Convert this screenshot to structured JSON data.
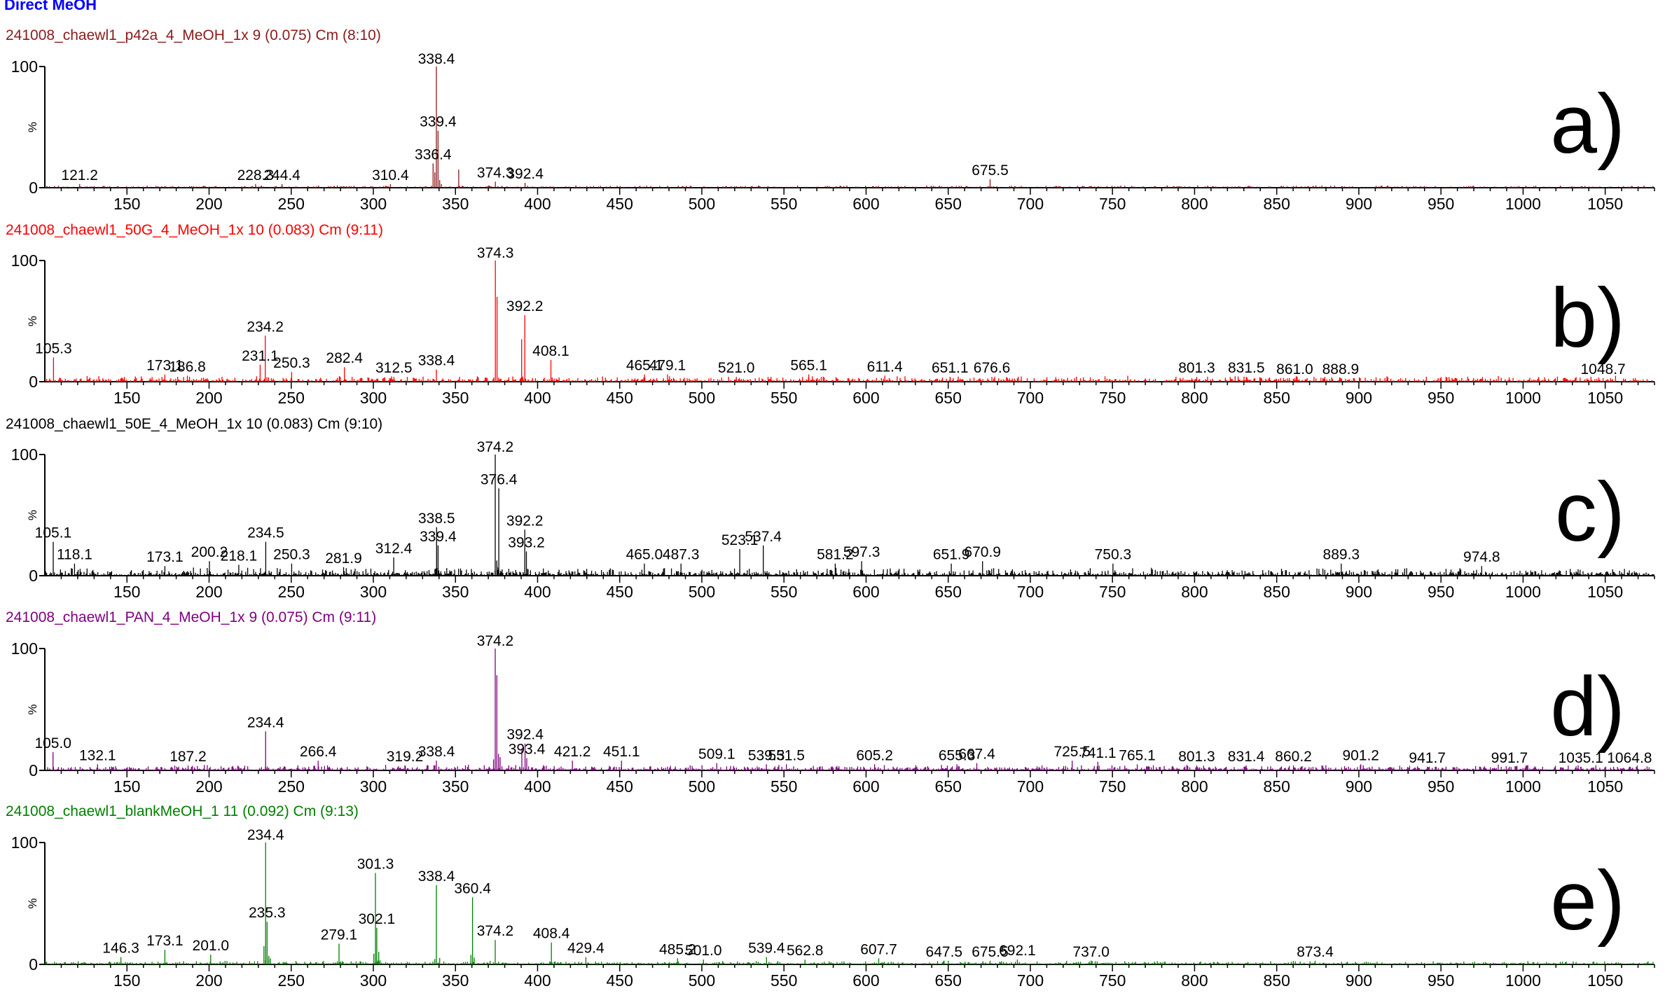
{
  "page": {
    "title": "Direct MeOH"
  },
  "colors": {
    "a": "#8b1a1a",
    "b": "#ff0000",
    "c": "#000000",
    "d": "#800080",
    "e": "#008000"
  },
  "chart_data": [
    {
      "type": "line",
      "panel": "a)",
      "header": "241008_chaewl1_p42a_4_MeOH_1x 9 (0.075) Cm (8:10)",
      "ylabel": "%",
      "ytick_labels": [
        "100",
        "0"
      ],
      "ylim": [
        0,
        100
      ],
      "xlim": [
        100,
        1080
      ],
      "xticks": [
        150,
        200,
        250,
        300,
        350,
        400,
        450,
        500,
        550,
        600,
        650,
        700,
        750,
        800,
        850,
        900,
        950,
        1000,
        1050
      ],
      "noise": 2,
      "peaks": [
        [
          121.2,
          3
        ],
        [
          228.3,
          3
        ],
        [
          244.4,
          3
        ],
        [
          310.4,
          3
        ],
        [
          336.4,
          20
        ],
        [
          338.4,
          100
        ],
        [
          339.4,
          47
        ],
        [
          352,
          15
        ],
        [
          374.3,
          5
        ],
        [
          392.4,
          4
        ],
        [
          675.5,
          7
        ]
      ],
      "labels": [
        {
          "text": "121.2",
          "x": 121.2
        },
        {
          "text": "228.3",
          "x": 228.3
        },
        {
          "text": "244.4",
          "x": 244.4
        },
        {
          "text": "310.4",
          "x": 310.4
        },
        {
          "text": "336.4",
          "x": 336.4
        },
        {
          "text": "338.4",
          "x": 338.4
        },
        {
          "text": "339.4",
          "x": 339.4
        },
        {
          "text": "374.3",
          "x": 374.3
        },
        {
          "text": "392.4",
          "x": 392.4
        },
        {
          "text": "675.5",
          "x": 675.5
        }
      ]
    },
    {
      "type": "line",
      "panel": "b)",
      "header": "241008_chaewl1_50G_4_MeOH_1x 10 (0.083) Cm (9:11)",
      "ylabel": "%",
      "ytick_labels": [
        "100",
        "0"
      ],
      "ylim": [
        0,
        100
      ],
      "xlim": [
        100,
        1080
      ],
      "xticks": [
        150,
        200,
        250,
        300,
        350,
        400,
        450,
        500,
        550,
        600,
        650,
        700,
        750,
        800,
        850,
        900,
        950,
        1000,
        1050
      ],
      "noise": 5,
      "peaks": [
        [
          105.3,
          20
        ],
        [
          173.1,
          6
        ],
        [
          186.8,
          5
        ],
        [
          231.1,
          14
        ],
        [
          234.2,
          38
        ],
        [
          250.3,
          8
        ],
        [
          282.4,
          12
        ],
        [
          312.5,
          4
        ],
        [
          338.4,
          10
        ],
        [
          374.3,
          100
        ],
        [
          375.3,
          70
        ],
        [
          392.2,
          55
        ],
        [
          390.3,
          35
        ],
        [
          408.1,
          18
        ],
        [
          465.1,
          6
        ],
        [
          479.1,
          6
        ],
        [
          521.0,
          4
        ],
        [
          565.1,
          6
        ],
        [
          611.4,
          5
        ],
        [
          651.1,
          4
        ],
        [
          676.6,
          4
        ],
        [
          801.3,
          4
        ],
        [
          831.5,
          4
        ],
        [
          861.0,
          3
        ],
        [
          888.9,
          3
        ],
        [
          1048.7,
          3
        ]
      ],
      "labels": [
        {
          "text": "105.3",
          "x": 105.3
        },
        {
          "text": "173.1",
          "x": 173.1
        },
        {
          "text": "186.8",
          "x": 186.8
        },
        {
          "text": "231.1",
          "x": 231.1
        },
        {
          "text": "234.2",
          "x": 234.2
        },
        {
          "text": "250.3",
          "x": 250.3
        },
        {
          "text": "282.4",
          "x": 282.4
        },
        {
          "text": "312.5",
          "x": 312.5
        },
        {
          "text": "338.4",
          "x": 338.4
        },
        {
          "text": "374.3",
          "x": 374.3
        },
        {
          "text": "392.2",
          "x": 392.2
        },
        {
          "text": "408.1",
          "x": 408.1
        },
        {
          "text": "465.1",
          "x": 465.1
        },
        {
          "text": "479.1",
          "x": 479.1
        },
        {
          "text": "521.0",
          "x": 521.0
        },
        {
          "text": "565.1",
          "x": 565.1
        },
        {
          "text": "611.4",
          "x": 611.4
        },
        {
          "text": "651.1",
          "x": 651.1
        },
        {
          "text": "676.6",
          "x": 676.6
        },
        {
          "text": "801.3",
          "x": 801.3
        },
        {
          "text": "831.5",
          "x": 831.5
        },
        {
          "text": "861.0",
          "x": 861.0
        },
        {
          "text": "888.9",
          "x": 888.9
        },
        {
          "text": "1048.7",
          "x": 1048.7
        }
      ]
    },
    {
      "type": "line",
      "panel": "c)",
      "header": "241008_chaewl1_50E_4_MeOH_1x 10 (0.083) Cm (9:10)",
      "ylabel": "%",
      "ytick_labels": [
        "100",
        "0"
      ],
      "ylim": [
        0,
        100
      ],
      "xlim": [
        100,
        1080
      ],
      "xticks": [
        150,
        200,
        250,
        300,
        350,
        400,
        450,
        500,
        550,
        600,
        650,
        700,
        750,
        800,
        850,
        900,
        950,
        1000,
        1050
      ],
      "noise": 7,
      "peaks": [
        [
          105.1,
          28
        ],
        [
          118.1,
          10
        ],
        [
          173.1,
          8
        ],
        [
          200.2,
          12
        ],
        [
          218.1,
          9
        ],
        [
          234.5,
          28
        ],
        [
          250.3,
          10
        ],
        [
          281.9,
          7
        ],
        [
          312.4,
          15
        ],
        [
          338.5,
          40
        ],
        [
          339.4,
          25
        ],
        [
          374.2,
          100
        ],
        [
          376.4,
          72
        ],
        [
          392.2,
          38
        ],
        [
          393.2,
          20
        ],
        [
          465.0,
          10
        ],
        [
          487.3,
          10
        ],
        [
          523.1,
          22
        ],
        [
          537.4,
          25
        ],
        [
          581.2,
          10
        ],
        [
          597.3,
          12
        ],
        [
          651.9,
          10
        ],
        [
          670.9,
          12
        ],
        [
          750.3,
          10
        ],
        [
          889.3,
          10
        ],
        [
          974.8,
          8
        ]
      ],
      "labels": [
        {
          "text": "105.1",
          "x": 105.1
        },
        {
          "text": "118.1",
          "x": 118.1
        },
        {
          "text": "173.1",
          "x": 173.1
        },
        {
          "text": "200.2",
          "x": 200.2
        },
        {
          "text": "218.1",
          "x": 218.1
        },
        {
          "text": "234.5",
          "x": 234.5
        },
        {
          "text": "250.3",
          "x": 250.3
        },
        {
          "text": "281.9",
          "x": 281.9
        },
        {
          "text": "312.4",
          "x": 312.4
        },
        {
          "text": "338.5",
          "x": 338.5
        },
        {
          "text": "339.4",
          "x": 339.4
        },
        {
          "text": "374.2",
          "x": 374.2
        },
        {
          "text": "376.4",
          "x": 376.4
        },
        {
          "text": "392.2",
          "x": 392.2
        },
        {
          "text": "393.2",
          "x": 393.2
        },
        {
          "text": "465.0",
          "x": 465.0
        },
        {
          "text": "487.3",
          "x": 487.3
        },
        {
          "text": "523.1",
          "x": 523.1
        },
        {
          "text": "537.4",
          "x": 537.4
        },
        {
          "text": "581.2",
          "x": 581.2
        },
        {
          "text": "597.3",
          "x": 597.3
        },
        {
          "text": "651.9",
          "x": 651.9
        },
        {
          "text": "670.9",
          "x": 670.9
        },
        {
          "text": "750.3",
          "x": 750.3
        },
        {
          "text": "889.3",
          "x": 889.3
        },
        {
          "text": "974.8",
          "x": 974.8
        }
      ]
    },
    {
      "type": "line",
      "panel": "d)",
      "header": "241008_chaewl1_PAN_4_MeOH_1x 9 (0.075) Cm (9:11)",
      "ylabel": "%",
      "ytick_labels": [
        "100",
        "0"
      ],
      "ylim": [
        0,
        100
      ],
      "xlim": [
        100,
        1080
      ],
      "xticks": [
        150,
        200,
        250,
        300,
        350,
        400,
        450,
        500,
        550,
        600,
        650,
        700,
        750,
        800,
        850,
        900,
        950,
        1000,
        1050
      ],
      "noise": 5,
      "peaks": [
        [
          105.0,
          15
        ],
        [
          132.1,
          5
        ],
        [
          187.2,
          4
        ],
        [
          234.4,
          32
        ],
        [
          266.4,
          8
        ],
        [
          319.2,
          4
        ],
        [
          338.4,
          8
        ],
        [
          374.2,
          100
        ],
        [
          375.2,
          78
        ],
        [
          392.4,
          22
        ],
        [
          390.4,
          18
        ],
        [
          393.4,
          10
        ],
        [
          421.2,
          8
        ],
        [
          451.1,
          8
        ],
        [
          509.1,
          6
        ],
        [
          539.3,
          5
        ],
        [
          551.5,
          5
        ],
        [
          605.2,
          5
        ],
        [
          655.3,
          5
        ],
        [
          667.4,
          6
        ],
        [
          725.5,
          8
        ],
        [
          741.1,
          7
        ],
        [
          765.1,
          5
        ],
        [
          801.3,
          4
        ],
        [
          831.4,
          4
        ],
        [
          860.2,
          4
        ],
        [
          901.2,
          5
        ],
        [
          941.7,
          3
        ],
        [
          991.7,
          3
        ],
        [
          1035.1,
          3
        ],
        [
          1064.8,
          3
        ]
      ],
      "labels": [
        {
          "text": "105.0",
          "x": 105.0
        },
        {
          "text": "132.1",
          "x": 132.1
        },
        {
          "text": "187.2",
          "x": 187.2
        },
        {
          "text": "234.4",
          "x": 234.4
        },
        {
          "text": "266.4",
          "x": 266.4
        },
        {
          "text": "319.2",
          "x": 319.2
        },
        {
          "text": "338.4",
          "x": 338.4
        },
        {
          "text": "374.2",
          "x": 374.2
        },
        {
          "text": "392.4",
          "x": 392.4
        },
        {
          "text": "393.4",
          "x": 393.4
        },
        {
          "text": "421.2",
          "x": 421.2
        },
        {
          "text": "451.1",
          "x": 451.1
        },
        {
          "text": "509.1",
          "x": 509.1
        },
        {
          "text": "539.3",
          "x": 539.3
        },
        {
          "text": "551.5",
          "x": 551.5
        },
        {
          "text": "605.2",
          "x": 605.2
        },
        {
          "text": "655.3",
          "x": 655.3
        },
        {
          "text": "667.4",
          "x": 667.4
        },
        {
          "text": "725.5",
          "x": 725.5
        },
        {
          "text": "741.1",
          "x": 741.1
        },
        {
          "text": "765.1",
          "x": 765.1
        },
        {
          "text": "801.3",
          "x": 801.3
        },
        {
          "text": "831.4",
          "x": 831.4
        },
        {
          "text": "860.2",
          "x": 860.2
        },
        {
          "text": "901.2",
          "x": 901.2
        },
        {
          "text": "941.7",
          "x": 941.7
        },
        {
          "text": "991.7",
          "x": 991.7
        },
        {
          "text": "1035.1",
          "x": 1035.1
        },
        {
          "text": "1064.8",
          "x": 1064.8
        }
      ]
    },
    {
      "type": "line",
      "panel": "e)",
      "header": "241008_chaewl1_blankMeOH_1 11 (0.092) Cm (9:13)",
      "ylabel": "%",
      "ytick_labels": [
        "100",
        "0"
      ],
      "ylim": [
        0,
        100
      ],
      "xlim": [
        100,
        1080
      ],
      "xticks": [
        150,
        200,
        250,
        300,
        350,
        400,
        450,
        500,
        550,
        600,
        650,
        700,
        750,
        800,
        850,
        900,
        950,
        1000,
        1050
      ],
      "noise": 3,
      "peaks": [
        [
          146.3,
          6
        ],
        [
          173.1,
          12
        ],
        [
          201.0,
          8
        ],
        [
          234.4,
          100
        ],
        [
          235.3,
          35
        ],
        [
          279.1,
          17
        ],
        [
          301.3,
          75
        ],
        [
          302.1,
          30
        ],
        [
          338.4,
          65
        ],
        [
          360.4,
          55
        ],
        [
          374.2,
          20
        ],
        [
          408.4,
          18
        ],
        [
          429.4,
          6
        ],
        [
          485.2,
          5
        ],
        [
          501.0,
          4
        ],
        [
          539.4,
          6
        ],
        [
          562.8,
          4
        ],
        [
          607.7,
          5
        ],
        [
          647.5,
          3
        ],
        [
          675.5,
          3
        ],
        [
          692.1,
          4
        ],
        [
          737.0,
          3
        ],
        [
          873.4,
          3
        ]
      ],
      "labels": [
        {
          "text": "146.3",
          "x": 146.3
        },
        {
          "text": "173.1",
          "x": 173.1
        },
        {
          "text": "201.0",
          "x": 201.0
        },
        {
          "text": "234.4",
          "x": 234.4
        },
        {
          "text": "235.3",
          "x": 235.3
        },
        {
          "text": "279.1",
          "x": 279.1
        },
        {
          "text": "301.3",
          "x": 301.3
        },
        {
          "text": "302.1",
          "x": 302.1
        },
        {
          "text": "338.4",
          "x": 338.4
        },
        {
          "text": "360.4",
          "x": 360.4
        },
        {
          "text": "374.2",
          "x": 374.2
        },
        {
          "text": "408.4",
          "x": 408.4
        },
        {
          "text": "429.4",
          "x": 429.4
        },
        {
          "text": "485.2",
          "x": 485.2
        },
        {
          "text": "501.0",
          "x": 501.0
        },
        {
          "text": "539.4",
          "x": 539.4
        },
        {
          "text": "562.8",
          "x": 562.8
        },
        {
          "text": "607.7",
          "x": 607.7
        },
        {
          "text": "647.5",
          "x": 647.5
        },
        {
          "text": "675.5",
          "x": 675.5
        },
        {
          "text": "692.1",
          "x": 692.1
        },
        {
          "text": "737.0",
          "x": 737.0
        },
        {
          "text": "873.4",
          "x": 873.4
        }
      ]
    }
  ]
}
